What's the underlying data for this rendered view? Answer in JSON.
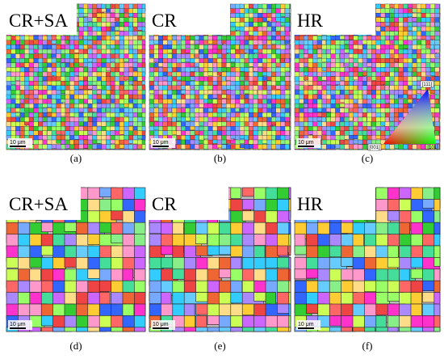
{
  "panels": [
    {
      "label": "CR+SA",
      "caption": "(a)",
      "scale_bar": "10 μm"
    },
    {
      "label": "CR",
      "caption": "(b)",
      "scale_bar": "10 μm"
    },
    {
      "label": "HR",
      "caption": "(c)",
      "scale_bar": "10 μm"
    },
    {
      "label": "CR+SA",
      "caption": "(d)",
      "scale_bar": "10 μm"
    },
    {
      "label": "CR",
      "caption": "(e)",
      "scale_bar": "10 μm"
    },
    {
      "label": "HR",
      "caption": "(f)",
      "scale_bar": "10 μm"
    }
  ],
  "ipf_legend": {
    "top": "[111]",
    "left": "[001]",
    "right": "[101]"
  }
}
